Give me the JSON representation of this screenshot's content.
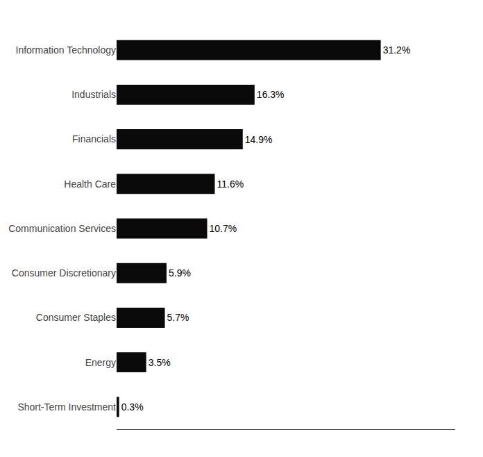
{
  "chart_data": {
    "type": "bar",
    "orientation": "horizontal",
    "categories": [
      "Information Technology",
      "Industrials",
      "Financials",
      "Health Care",
      "Communication Services",
      "Consumer Discretionary",
      "Consumer Staples",
      "Energy",
      "Short-Term Investment"
    ],
    "values": [
      31.2,
      16.3,
      14.9,
      11.6,
      10.7,
      5.9,
      5.7,
      3.5,
      0.3
    ],
    "value_labels": [
      "31.2%",
      "16.3%",
      "14.9%",
      "11.6%",
      "10.7%",
      "5.9%",
      "5.7%",
      "3.5%",
      "0.3%"
    ],
    "color": "#0a0a0a",
    "xlim": [
      0,
      40
    ],
    "data_labels": true,
    "tick_labels": "y",
    "grid": false
  }
}
